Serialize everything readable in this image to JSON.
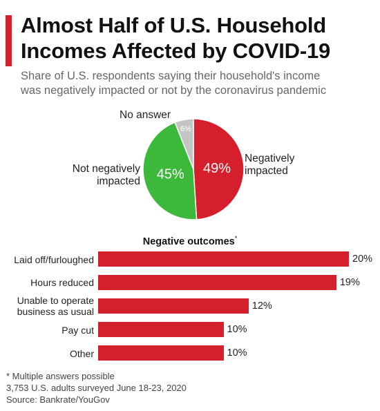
{
  "header": {
    "title_lines": [
      "Almost Half of U.S. Household",
      "Incomes Affected by COVID-19"
    ],
    "subtitle_lines": [
      "Share of U.S. respondents saying their household's income",
      "was negatively impacted or not by the coronavirus pandemic"
    ],
    "accent_color": "#d61f2c"
  },
  "footer": {
    "lines": [
      "* Multiple answers possible",
      "3,753 U.S. adults surveyed June 18-23, 2020",
      "Source: Bankrate/YouGov"
    ]
  },
  "chart_data": [
    {
      "type": "pie",
      "title": "",
      "slices": [
        {
          "name": "Negatively impacted",
          "label_lines": [
            "Negatively",
            "impacted"
          ],
          "value": 49,
          "value_label": "49%",
          "color": "#d61f2c"
        },
        {
          "name": "Not negatively impacted",
          "label_lines": [
            "Not negatively",
            "impacted"
          ],
          "value": 45,
          "value_label": "45%",
          "color": "#3cb83a"
        },
        {
          "name": "No answer",
          "label_lines": [
            "No answer"
          ],
          "value": 6,
          "value_label": "6%",
          "color": "#c4c4c4"
        }
      ]
    },
    {
      "type": "bar",
      "orientation": "horizontal",
      "title": "Negative outcomes",
      "title_marker": "*",
      "categories": [
        "Laid off/furloughed",
        "Hours reduced",
        "Unable to operate business as usual",
        "Pay cut",
        "Other"
      ],
      "category_label_lines": [
        [
          "Laid off/furloughed"
        ],
        [
          "Hours reduced"
        ],
        [
          "Unable to operate",
          "business as usual"
        ],
        [
          "Pay cut"
        ],
        [
          "Other"
        ]
      ],
      "values": [
        20,
        19,
        12,
        10,
        10
      ],
      "value_labels": [
        "20%",
        "19%",
        "12%",
        "10%",
        "10%"
      ],
      "xlim": [
        0,
        20
      ],
      "color": "#d61f2c"
    }
  ]
}
